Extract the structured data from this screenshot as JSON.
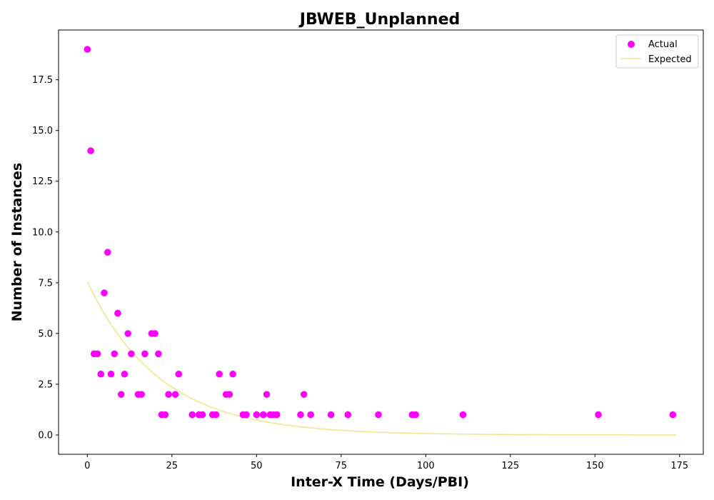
{
  "chart_data": {
    "type": "scatter",
    "title": "JBWEB_Unplanned",
    "xlabel": "Inter-X Time (Days/PBI)",
    "ylabel": "Number of Instances",
    "xlim": [
      -8.5,
      182
    ],
    "ylim": [
      -0.95,
      19.95
    ],
    "xticks": [
      0,
      25,
      50,
      75,
      100,
      125,
      150,
      175
    ],
    "xtick_labels": [
      "0",
      "25",
      "50",
      "75",
      "100",
      "125",
      "150",
      "175"
    ],
    "yticks": [
      0,
      2.5,
      5,
      7.5,
      10,
      12.5,
      15,
      17.5
    ],
    "ytick_labels": [
      "0.0",
      "2.5",
      "5.0",
      "7.5",
      "10.0",
      "12.5",
      "15.0",
      "17.5"
    ],
    "grid": false,
    "legend_position": "top-right",
    "series": [
      {
        "name": "Actual",
        "kind": "scatter",
        "color": "#ff00ff",
        "points": [
          [
            0,
            19
          ],
          [
            1,
            14
          ],
          [
            2,
            4
          ],
          [
            3,
            4
          ],
          [
            4,
            3
          ],
          [
            5,
            7
          ],
          [
            6,
            9
          ],
          [
            7,
            3
          ],
          [
            8,
            4
          ],
          [
            9,
            6
          ],
          [
            10,
            2
          ],
          [
            11,
            3
          ],
          [
            12,
            5
          ],
          [
            13,
            4
          ],
          [
            15,
            2
          ],
          [
            16,
            2
          ],
          [
            17,
            4
          ],
          [
            19,
            5
          ],
          [
            20,
            5
          ],
          [
            21,
            4
          ],
          [
            22,
            1
          ],
          [
            23,
            1
          ],
          [
            24,
            2
          ],
          [
            26,
            2
          ],
          [
            27,
            3
          ],
          [
            31,
            1
          ],
          [
            33,
            1
          ],
          [
            34,
            1
          ],
          [
            37,
            1
          ],
          [
            38,
            1
          ],
          [
            39,
            3
          ],
          [
            41,
            2
          ],
          [
            42,
            2
          ],
          [
            43,
            3
          ],
          [
            46,
            1
          ],
          [
            47,
            1
          ],
          [
            50,
            1
          ],
          [
            52,
            1
          ],
          [
            53,
            2
          ],
          [
            54,
            1
          ],
          [
            55,
            1
          ],
          [
            56,
            1
          ],
          [
            63,
            1
          ],
          [
            64,
            2
          ],
          [
            66,
            1
          ],
          [
            72,
            1
          ],
          [
            77,
            1
          ],
          [
            86,
            1
          ],
          [
            96,
            1
          ],
          [
            97,
            1
          ],
          [
            111,
            1
          ],
          [
            151,
            1
          ],
          [
            173,
            1
          ]
        ]
      },
      {
        "name": "Expected",
        "kind": "line",
        "color": "#f0e68c",
        "function": "7.55 * exp(-x / 21.5)",
        "x_range": [
          0,
          174
        ],
        "sample_points": [
          [
            0,
            7.55
          ],
          [
            10,
            4.74
          ],
          [
            20,
            2.98
          ],
          [
            30,
            1.88
          ],
          [
            40,
            1.18
          ],
          [
            50,
            0.74
          ],
          [
            75,
            0.23
          ],
          [
            100,
            0.07
          ],
          [
            125,
            0.02
          ],
          [
            150,
            0.01
          ],
          [
            174,
            0.0
          ]
        ]
      }
    ]
  }
}
